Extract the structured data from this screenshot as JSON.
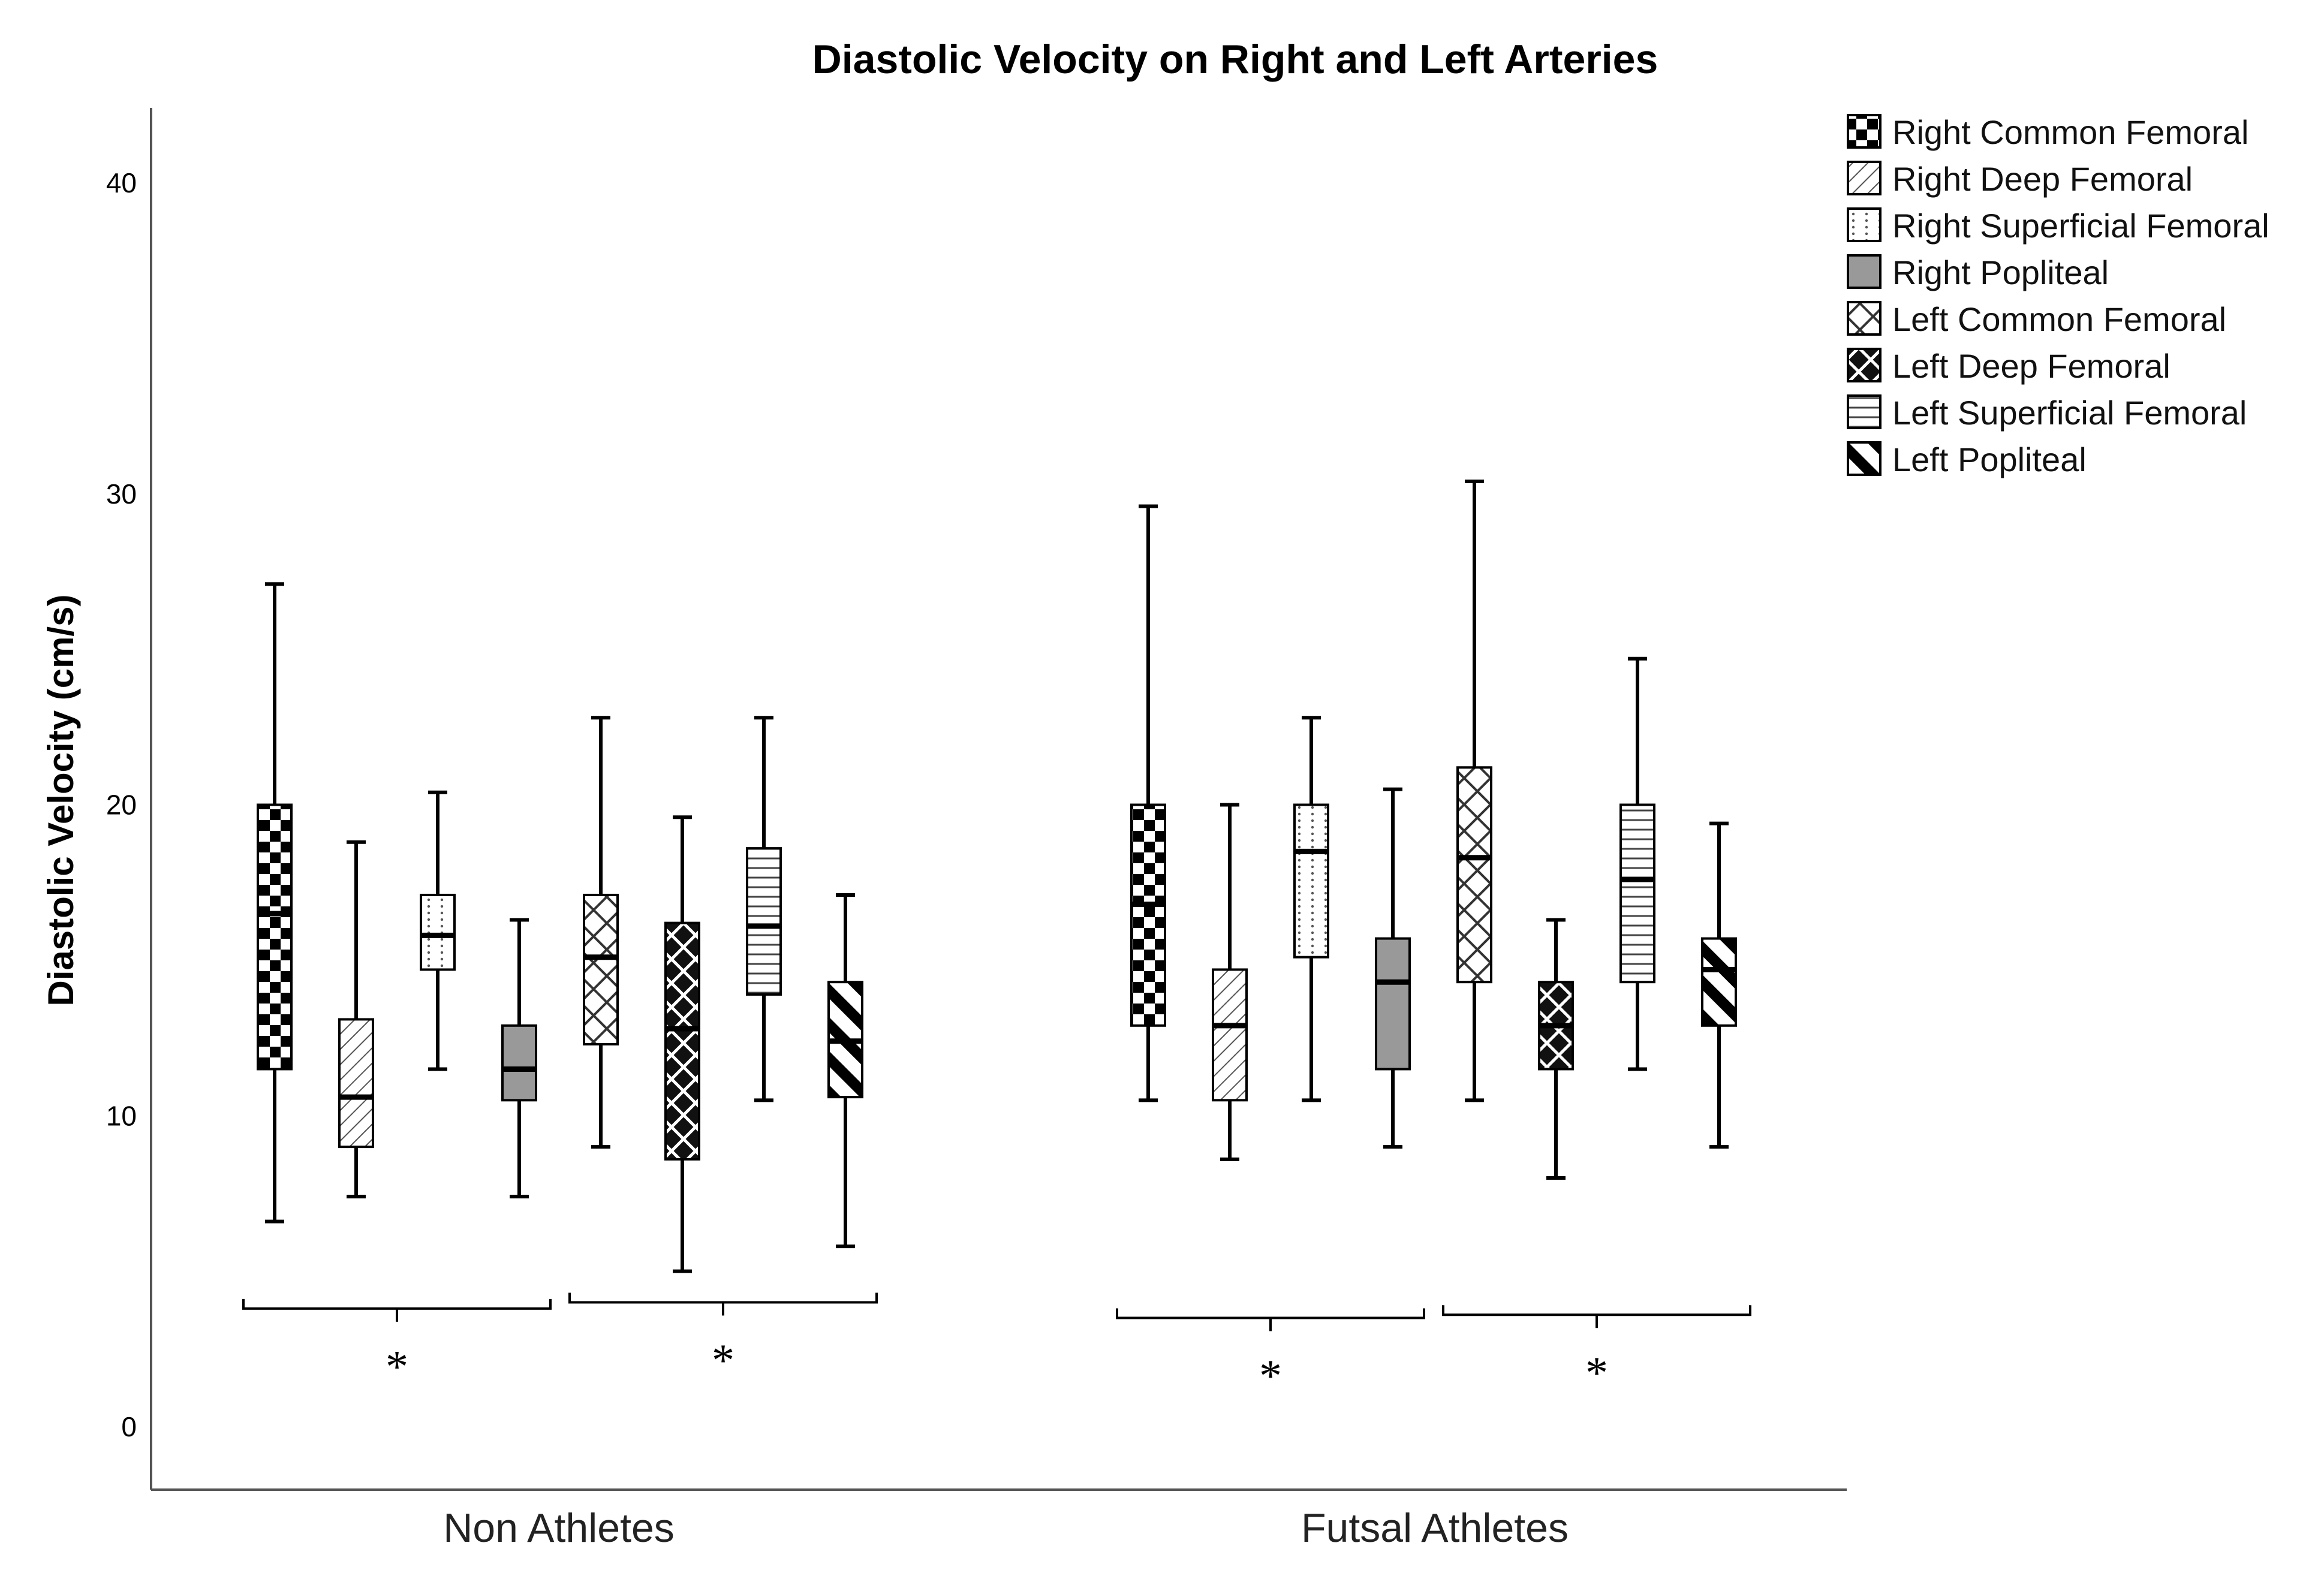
{
  "chart_data": {
    "type": "box",
    "title": "Diastolic Velocity on Right and Left Arteries",
    "xlabel": "",
    "ylabel": "Diastolic Velocity (cm/s)",
    "ylim": [
      0,
      42
    ],
    "yticks": [
      0,
      10,
      20,
      30,
      40
    ],
    "categories": [
      "Non Athletes",
      "Futsal Athletes"
    ],
    "series": [
      {
        "name": "Right Common Femoral",
        "pattern": "checker",
        "boxes": [
          {
            "min": 6.6,
            "q1": 11.5,
            "median": 16.5,
            "q3": 20.0,
            "max": 27.1
          },
          {
            "min": 10.5,
            "q1": 12.9,
            "median": 16.8,
            "q3": 20.0,
            "max": 29.6
          }
        ]
      },
      {
        "name": "Right Deep Femoral",
        "pattern": "diag-thin",
        "boxes": [
          {
            "min": 7.4,
            "q1": 9.0,
            "median": 10.6,
            "q3": 13.1,
            "max": 18.8
          },
          {
            "min": 8.6,
            "q1": 10.5,
            "median": 12.9,
            "q3": 14.7,
            "max": 20.0
          }
        ]
      },
      {
        "name": "Right Superficial Femoral",
        "pattern": "dots",
        "boxes": [
          {
            "min": 11.5,
            "q1": 14.7,
            "median": 15.8,
            "q3": 17.1,
            "max": 20.4
          },
          {
            "min": 10.5,
            "q1": 15.1,
            "median": 18.5,
            "q3": 20.0,
            "max": 22.8
          }
        ]
      },
      {
        "name": "Right Popliteal",
        "pattern": "gray",
        "boxes": [
          {
            "min": 7.4,
            "q1": 10.5,
            "median": 11.5,
            "q3": 12.9,
            "max": 16.3
          },
          {
            "min": 9.0,
            "q1": 11.5,
            "median": 14.3,
            "q3": 15.7,
            "max": 20.5
          }
        ]
      },
      {
        "name": "Left Common Femoral",
        "pattern": "crosshatch",
        "boxes": [
          {
            "min": 9.0,
            "q1": 12.3,
            "median": 15.1,
            "q3": 17.1,
            "max": 22.8
          },
          {
            "min": 10.5,
            "q1": 14.3,
            "median": 18.3,
            "q3": 21.2,
            "max": 30.4
          }
        ]
      },
      {
        "name": "Left Deep Femoral",
        "pattern": "dark-cross",
        "boxes": [
          {
            "min": 5.0,
            "q1": 8.6,
            "median": 12.8,
            "q3": 16.2,
            "max": 19.6
          },
          {
            "min": 8.0,
            "q1": 11.5,
            "median": 12.9,
            "q3": 14.3,
            "max": 16.3
          }
        ]
      },
      {
        "name": "Left Superficial Femoral",
        "pattern": "hlines",
        "boxes": [
          {
            "min": 10.5,
            "q1": 13.9,
            "median": 16.1,
            "q3": 18.6,
            "max": 22.8
          },
          {
            "min": 11.5,
            "q1": 14.3,
            "median": 17.6,
            "q3": 20.0,
            "max": 24.7
          }
        ]
      },
      {
        "name": "Left Popliteal",
        "pattern": "diag-thick",
        "boxes": [
          {
            "min": 5.8,
            "q1": 10.6,
            "median": 12.4,
            "q3": 14.3,
            "max": 17.1
          },
          {
            "min": 9.0,
            "q1": 12.9,
            "median": 14.7,
            "q3": 15.7,
            "max": 19.4
          }
        ]
      }
    ],
    "significance": [
      {
        "group": "Non Athletes",
        "series_from": 0,
        "series_to": 3,
        "y": 3.8,
        "label": "*"
      },
      {
        "group": "Non Athletes",
        "series_from": 4,
        "series_to": 7,
        "y": 4.0,
        "label": "*"
      },
      {
        "group": "Futsal Athletes",
        "series_from": 0,
        "series_to": 3,
        "y": 3.5,
        "label": "*"
      },
      {
        "group": "Futsal Athletes",
        "series_from": 4,
        "series_to": 7,
        "y": 3.6,
        "label": "*"
      }
    ],
    "legend_position": "top-right",
    "grid": false
  }
}
